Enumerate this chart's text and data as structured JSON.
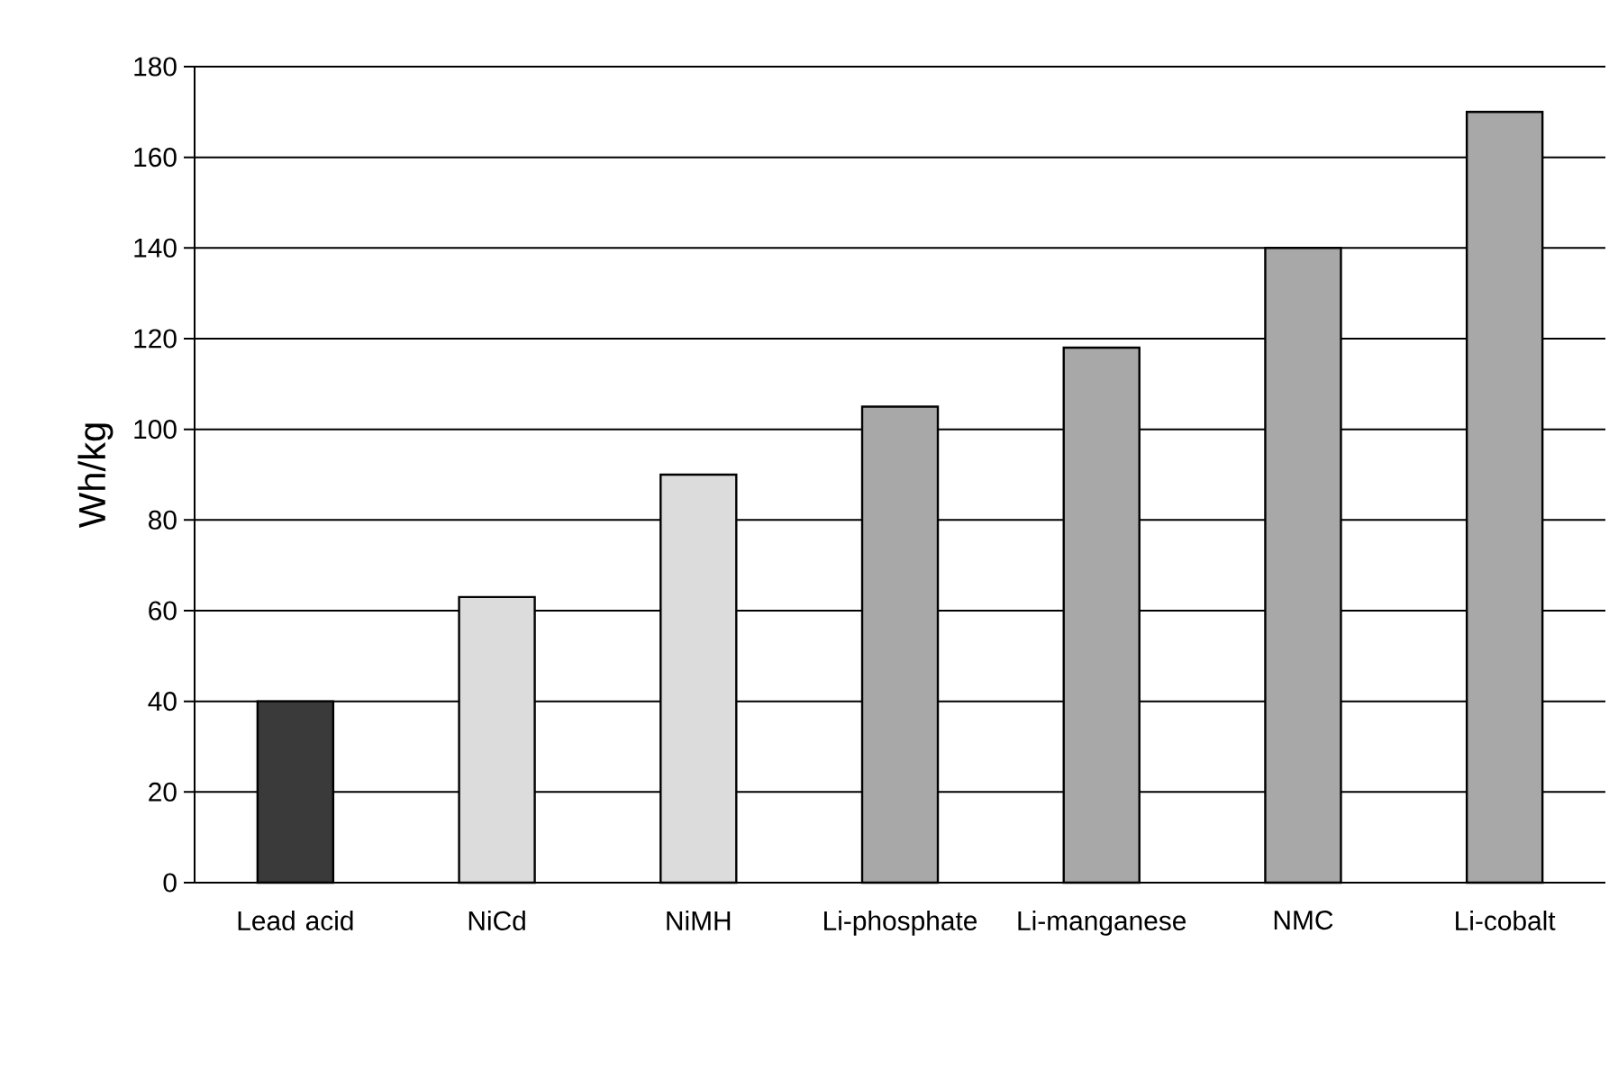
{
  "chart_data": {
    "type": "bar",
    "ylabel": "Wh/kg",
    "categories": [
      "Lead acid",
      "NiCd",
      "NiMH",
      "Li-phosphate",
      "Li-manganese",
      "NMC",
      "Li-cobalt"
    ],
    "values": [
      40,
      63,
      90,
      105,
      118,
      140,
      170
    ],
    "colors": [
      "#3a3a3a",
      "#dcdcdc",
      "#dcdcdc",
      "#a8a8a8",
      "#a8a8a8",
      "#a8a8a8",
      "#a8a8a8"
    ],
    "ylim": [
      0,
      180
    ],
    "yticks": [
      0,
      20,
      40,
      60,
      80,
      100,
      120,
      140,
      160,
      180
    ],
    "grid": "y"
  }
}
